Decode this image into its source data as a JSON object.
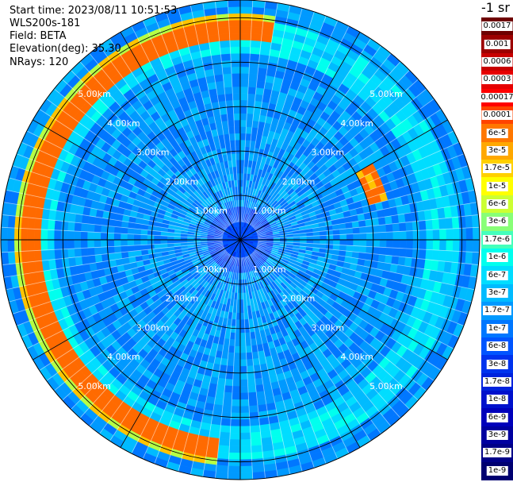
{
  "header": {
    "start_time": "Start time: 2023/08/11 10:51:53",
    "instrument": "WLS200s-181",
    "field": "Field: BETA",
    "elevation": "Elevation(deg): 35.30",
    "nrays": "NRays: 120"
  },
  "colorbar": {
    "units_label": "-1 sr",
    "ticks": [
      "0.0017",
      "0.001",
      "0.0006",
      "0.0003",
      "0.00017",
      "0.0001",
      "6e-5",
      "3e-5",
      "1.7e-5",
      "1e-5",
      "6e-6",
      "3e-6",
      "1.7e-6",
      "1e-6",
      "6e-7",
      "3e-7",
      "1.7e-7",
      "1e-7",
      "6e-8",
      "3e-8",
      "1.7e-8",
      "1e-8",
      "6e-9",
      "3e-9",
      "1.7e-9",
      "1e-9"
    ],
    "colors": [
      "#6e0000",
      "#9c0000",
      "#c80000",
      "#e60000",
      "#ff0000",
      "#ff4400",
      "#ff7700",
      "#ffa800",
      "#ffd000",
      "#ffff00",
      "#ccff33",
      "#88ff77",
      "#44ffbb",
      "#00ffee",
      "#00ddff",
      "#00bbff",
      "#0099ff",
      "#0077ff",
      "#0055ff",
      "#0033ee",
      "#0022dd",
      "#0011cc",
      "#0000bb",
      "#0000a0",
      "#000088",
      "#000070"
    ]
  },
  "ppi": {
    "nrays": 120,
    "range_km": 5.4,
    "ring_labels": [
      "1.00km",
      "2.00km",
      "3.00km",
      "4.00km",
      "5.00km"
    ]
  }
}
